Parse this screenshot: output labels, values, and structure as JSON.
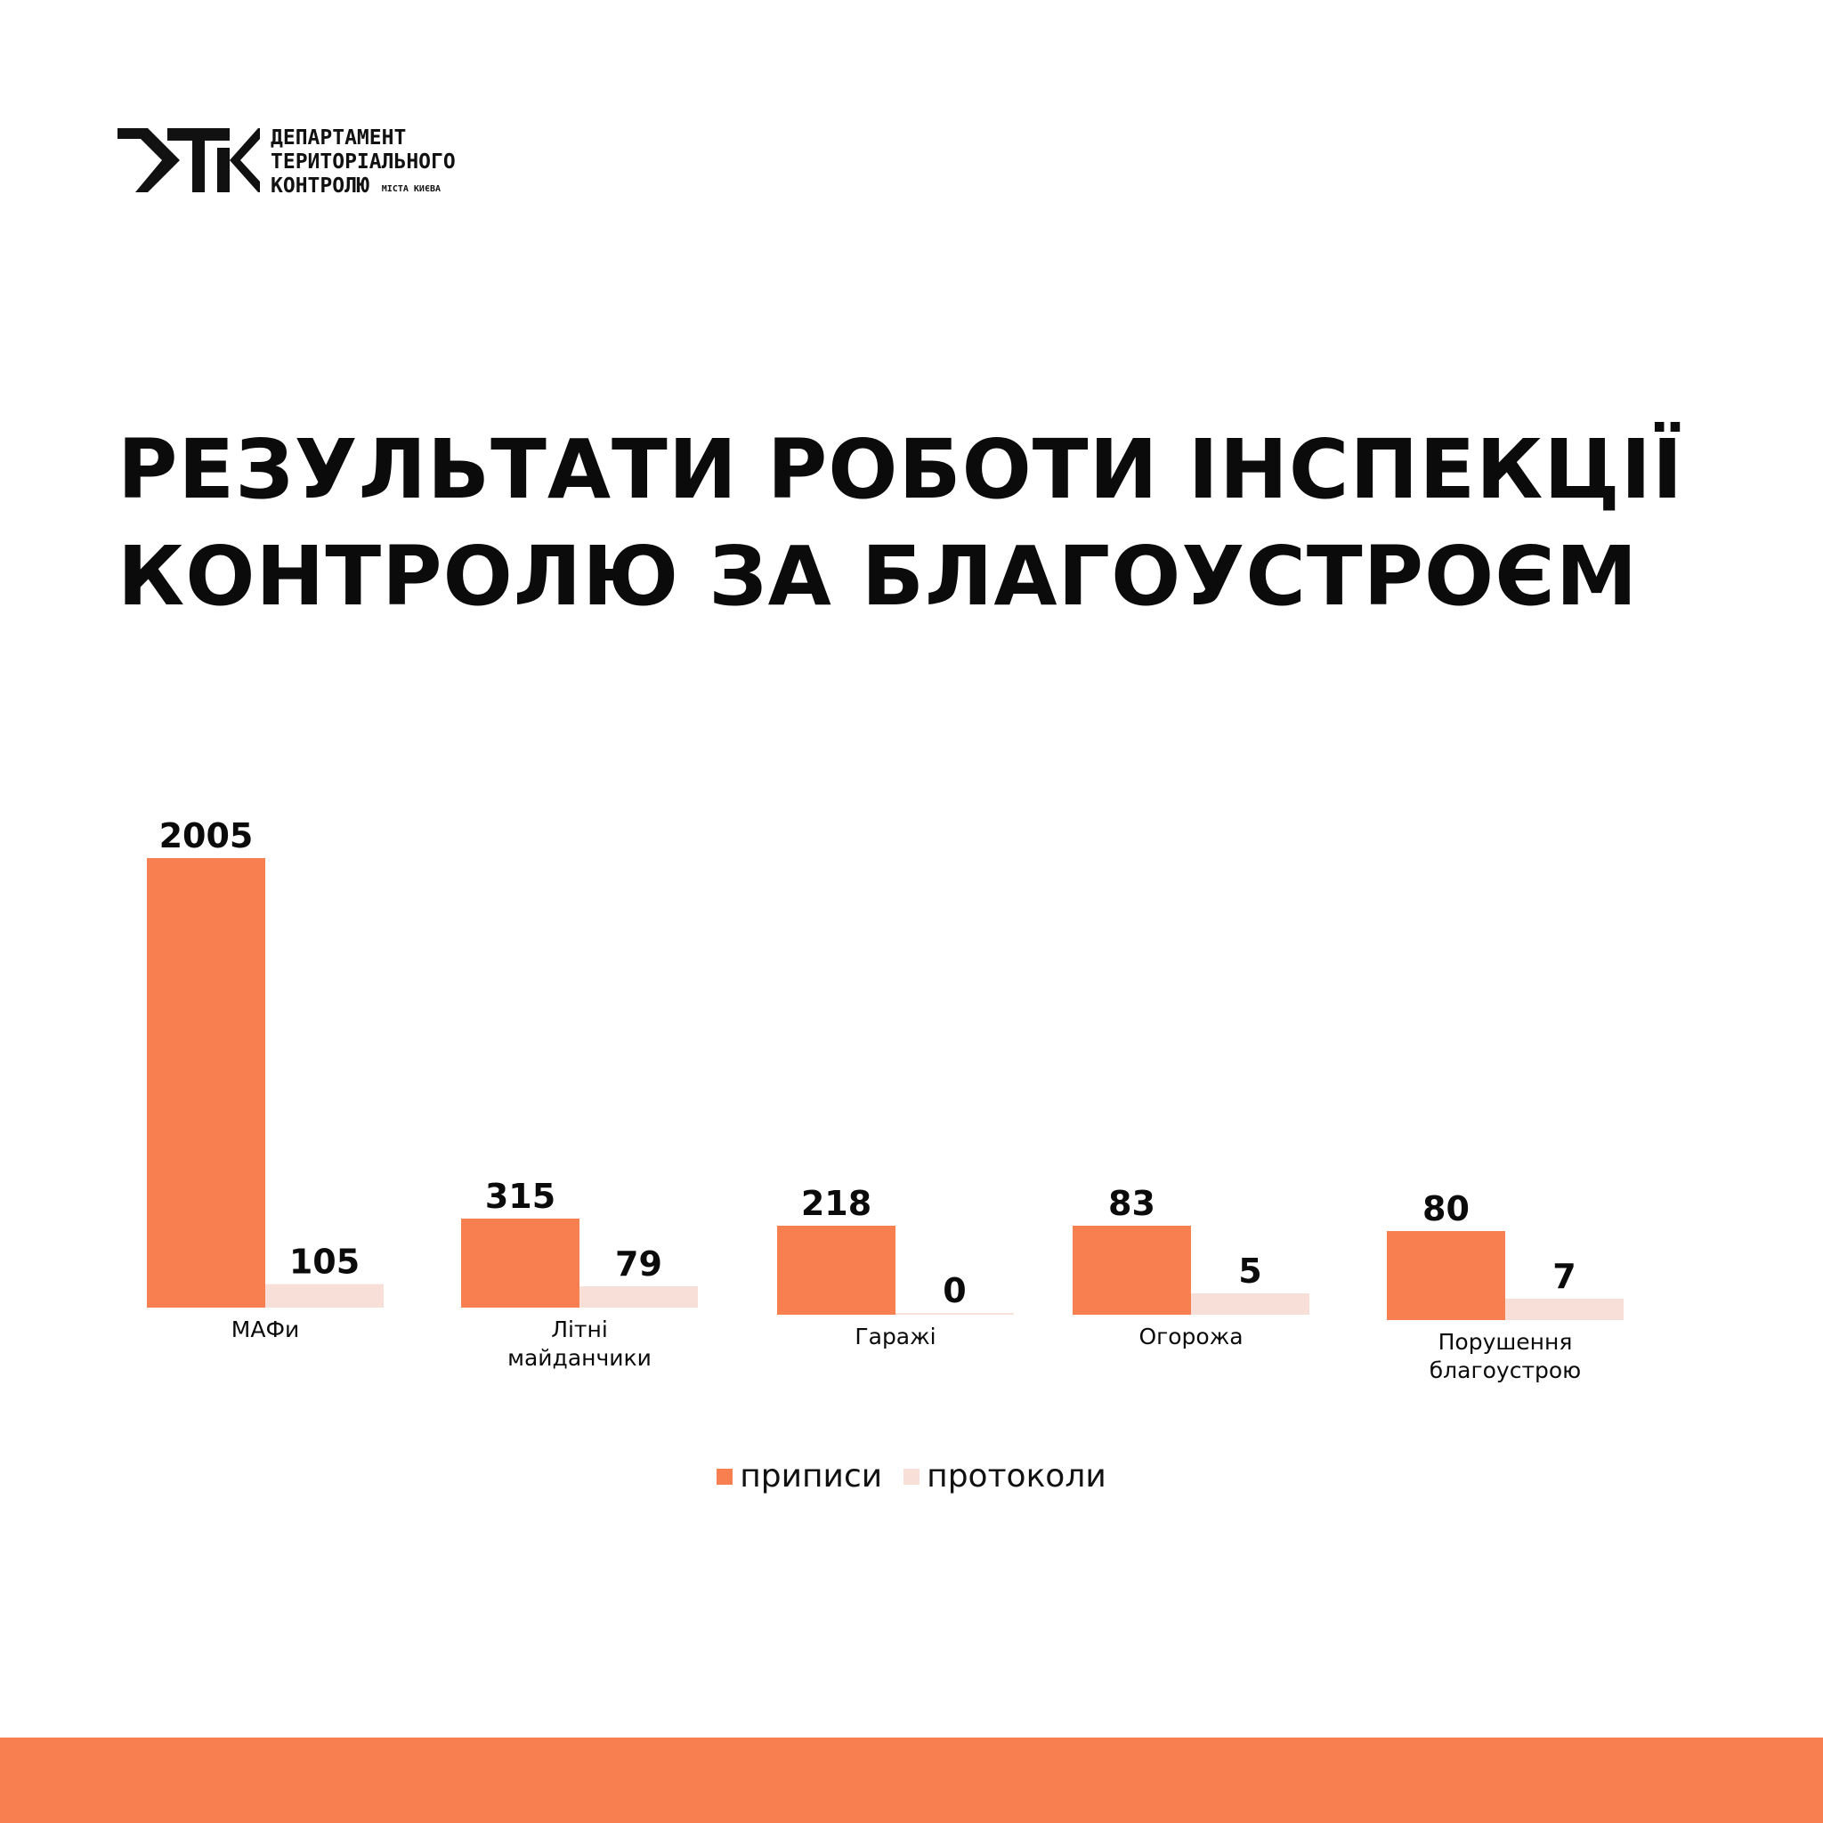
{
  "logo": {
    "lines": [
      "ДЕПАРТАМЕНТ",
      "ТЕРИТОРІАЛЬНОГО",
      "КОНТРОЛЮ"
    ],
    "subtitle": "МІСТА КИЄВА"
  },
  "title": {
    "line1": "РЕЗУЛЬТАТИ РОБОТИ ІНСПЕКЦІЇ",
    "line2": "КОНТРОЛЮ ЗА БЛАГОУСТРОЄМ"
  },
  "colors": {
    "accent": "#F77F50",
    "light": "#F8E0D8",
    "text": "#0b0b0b"
  },
  "chart_data": {
    "type": "bar",
    "categories": [
      [
        "МАФи"
      ],
      [
        "Літні",
        "майданчики"
      ],
      [
        "Гаражі"
      ],
      [
        "Огорожа"
      ],
      [
        "Порушення",
        "благоустрою"
      ]
    ],
    "series": [
      {
        "name": "приписи",
        "values": [
          2005,
          315,
          218,
          83,
          80
        ]
      },
      {
        "name": "протоколи",
        "values": [
          105,
          79,
          0,
          5,
          7
        ]
      }
    ],
    "value_labels": {
      "приписи": [
        "2005",
        "315",
        "218",
        "83",
        "80"
      ],
      "протоколи": [
        "105",
        "79",
        "0",
        "5",
        "7"
      ]
    },
    "legend_position": "bottom",
    "grid": false
  }
}
